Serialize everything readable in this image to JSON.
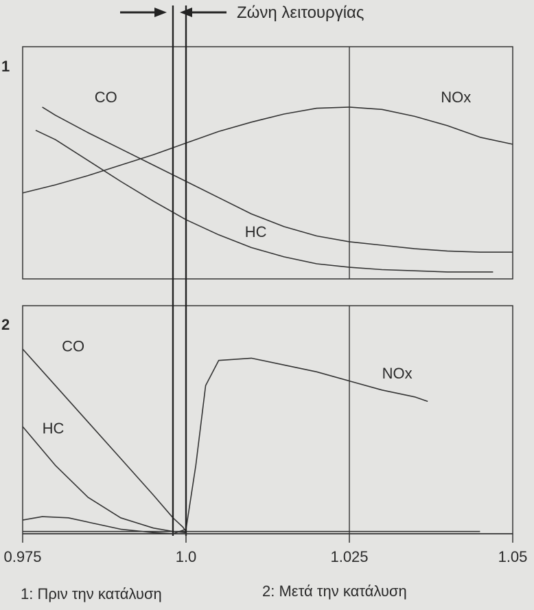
{
  "chart_data": {
    "type": "line",
    "x_ticks": [
      "0.975",
      "1.0",
      "1.025",
      "1.05"
    ],
    "xlim": [
      0.975,
      1.05
    ],
    "operating_zone": {
      "label": "Ζώνη λειτουργίας",
      "from": 0.998,
      "to": 1.0
    },
    "reference_line_x": 1.025,
    "panels": [
      {
        "id": "1",
        "caption": "1: Πριν την κατάλυση",
        "ylim": [
          0,
          1
        ],
        "series": [
          {
            "name": "CO",
            "label_x": 0.986,
            "label_y": 0.76,
            "x": [
              0.978,
              0.98,
              0.985,
              0.99,
              0.995,
              1.0,
              1.005,
              1.01,
              1.015,
              1.02,
              1.025,
              1.03,
              1.035,
              1.04,
              1.045,
              1.05
            ],
            "y": [
              0.74,
              0.705,
              0.63,
              0.56,
              0.49,
              0.42,
              0.35,
              0.28,
              0.225,
              0.185,
              0.16,
              0.145,
              0.13,
              0.12,
              0.115,
              0.115
            ]
          },
          {
            "name": "HC",
            "label_x": 1.009,
            "label_y": 0.18,
            "x": [
              0.977,
              0.98,
              0.985,
              0.99,
              0.995,
              1.0,
              1.005,
              1.01,
              1.015,
              1.02,
              1.025,
              1.03,
              1.035,
              1.04,
              1.047
            ],
            "y": [
              0.64,
              0.6,
              0.51,
              0.42,
              0.335,
              0.255,
              0.19,
              0.135,
              0.095,
              0.065,
              0.05,
              0.04,
              0.035,
              0.03,
              0.03
            ]
          },
          {
            "name": "NOx",
            "label_x": 1.039,
            "label_y": 0.76,
            "x": [
              0.975,
              0.98,
              0.985,
              0.99,
              0.995,
              1.0,
              1.005,
              1.01,
              1.015,
              1.02,
              1.025,
              1.03,
              1.035,
              1.04,
              1.045,
              1.05
            ],
            "y": [
              0.37,
              0.405,
              0.445,
              0.49,
              0.535,
              0.585,
              0.635,
              0.675,
              0.71,
              0.735,
              0.74,
              0.73,
              0.7,
              0.66,
              0.61,
              0.58
            ]
          }
        ]
      },
      {
        "id": "2",
        "caption": "2: Μετά την κατάλυση",
        "ylim": [
          0,
          1
        ],
        "series": [
          {
            "name": "CO",
            "label_x": 0.981,
            "label_y": 0.8,
            "x": [
              0.975,
              0.98,
              0.985,
              0.99,
              0.995,
              0.998,
              0.9995,
              1.0
            ],
            "y": [
              0.81,
              0.65,
              0.49,
              0.33,
              0.17,
              0.07,
              0.03,
              0.01
            ]
          },
          {
            "name": "HC",
            "label_x": 0.978,
            "label_y": 0.44,
            "x": [
              0.975,
              0.98,
              0.985,
              0.99,
              0.995,
              0.998,
              1.0
            ],
            "y": [
              0.47,
              0.3,
              0.16,
              0.07,
              0.025,
              0.01,
              0.005
            ]
          },
          {
            "name": "NOx",
            "label_x": 1.03,
            "label_y": 0.68,
            "x": [
              0.975,
              0.978,
              0.982,
              0.986,
              0.99,
              0.995,
              0.998,
              1.0,
              1.0015,
              1.003,
              1.005,
              1.01,
              1.015,
              1.02,
              1.025,
              1.03,
              1.035,
              1.037
            ],
            "y": [
              0.06,
              0.075,
              0.07,
              0.045,
              0.02,
              0.005,
              0,
              0.02,
              0.3,
              0.65,
              0.76,
              0.77,
              0.74,
              0.71,
              0.67,
              0.63,
              0.6,
              0.58
            ]
          },
          {
            "name": "",
            "label_x": 1.0,
            "label_y": 0,
            "x": [
              0.975,
              0.99,
              1.0,
              1.02,
              1.045
            ],
            "y": [
              0.01,
              0.01,
              0.01,
              0.01,
              0.01
            ]
          }
        ]
      }
    ]
  }
}
